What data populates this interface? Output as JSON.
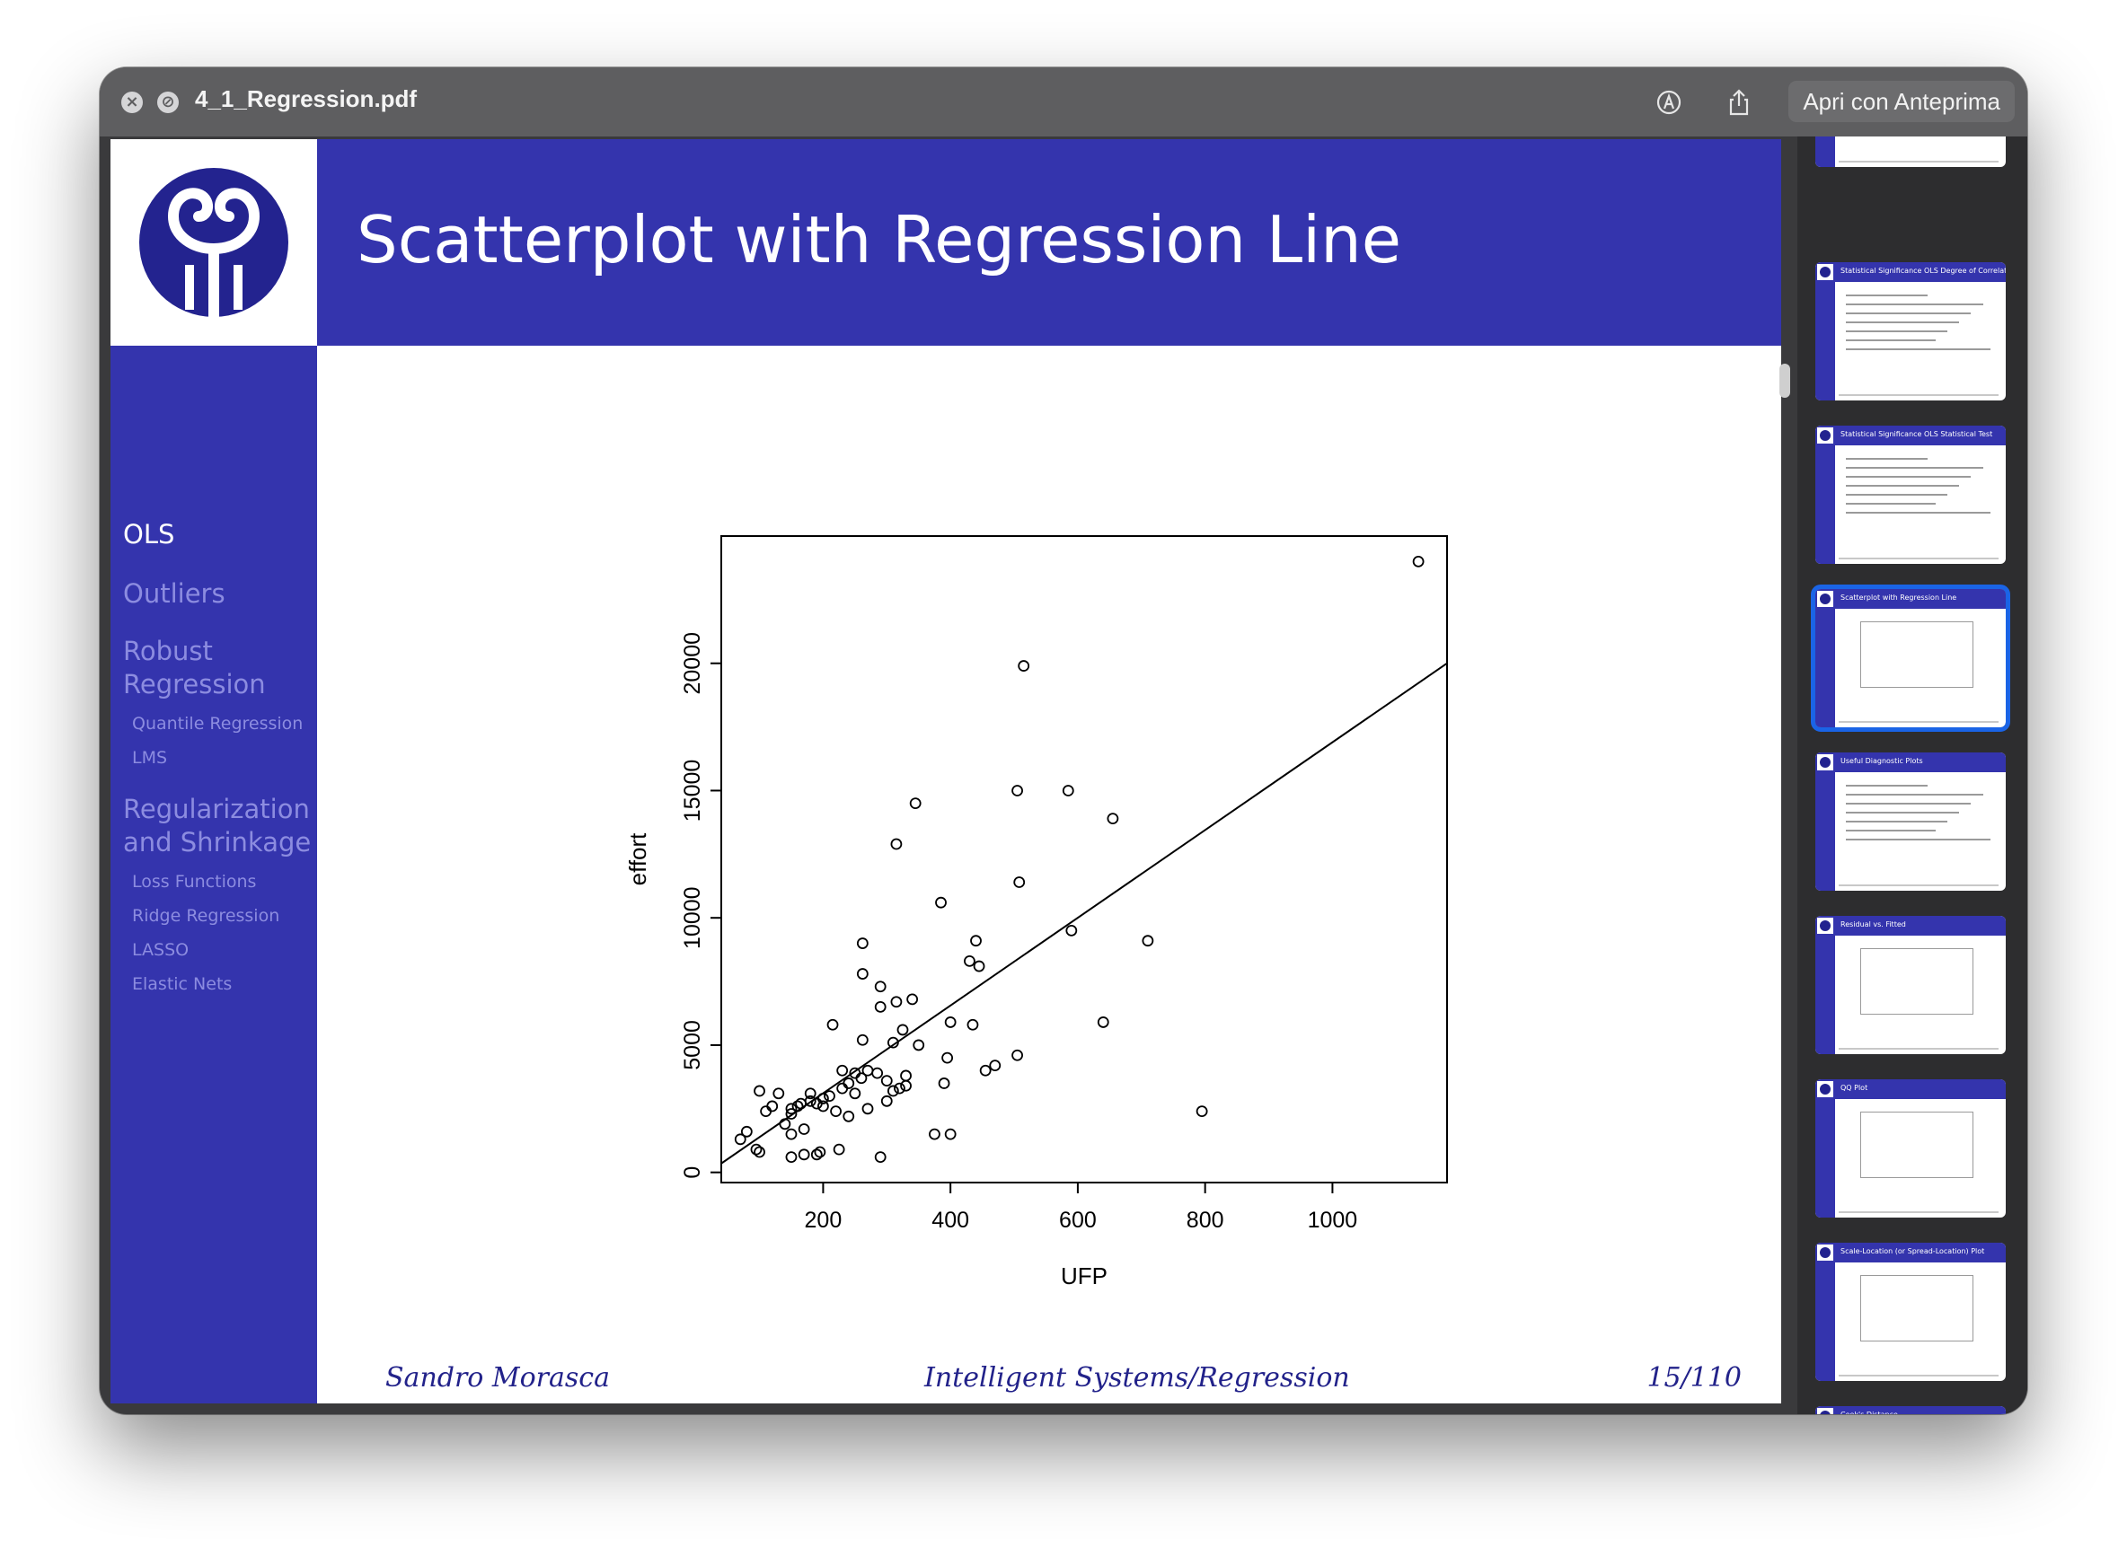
{
  "window": {
    "title": "4_1_Regression.pdf",
    "open_with_label": "Apri con Anteprima",
    "icons": [
      "close-icon",
      "minimize-icon",
      "markup-icon",
      "share-icon"
    ]
  },
  "slide": {
    "title": "Scatterplot with Regression Line",
    "nav": [
      {
        "label": "OLS",
        "active": true,
        "level": "section"
      },
      {
        "label": "Outliers",
        "active": false,
        "level": "section"
      },
      {
        "label": "Robust Regression",
        "active": false,
        "level": "section"
      },
      {
        "label": "Quantile Regression",
        "active": false,
        "level": "sub"
      },
      {
        "label": "LMS",
        "active": false,
        "level": "sub"
      },
      {
        "label": "Regularization and Shrinkage",
        "active": false,
        "level": "section"
      },
      {
        "label": "Loss Functions",
        "active": false,
        "level": "sub"
      },
      {
        "label": "Ridge Regression",
        "active": false,
        "level": "sub"
      },
      {
        "label": "LASSO",
        "active": false,
        "level": "sub"
      },
      {
        "label": "Elastic Nets",
        "active": false,
        "level": "sub"
      }
    ],
    "footer": {
      "author": "Sandro Morasca",
      "course": "Intelligent Systems/Regression",
      "page": "15/110"
    }
  },
  "chart_data": {
    "type": "scatter",
    "title": "",
    "xlabel": "UFP",
    "ylabel": "effort",
    "xlim": [
      40,
      1180
    ],
    "ylim": [
      -400,
      25000
    ],
    "xticks": [
      200,
      400,
      600,
      800,
      1000
    ],
    "yticks": [
      0,
      5000,
      10000,
      15000,
      20000
    ],
    "grid": false,
    "regression_line": {
      "x": [
        40,
        1180
      ],
      "y": [
        350,
        20000
      ]
    },
    "points": [
      [
        1135,
        24000
      ],
      [
        515,
        19900
      ],
      [
        345,
        14500
      ],
      [
        505,
        15000
      ],
      [
        585,
        15000
      ],
      [
        655,
        13900
      ],
      [
        315,
        12900
      ],
      [
        508,
        11400
      ],
      [
        385,
        10600
      ],
      [
        590,
        9500
      ],
      [
        710,
        9100
      ],
      [
        262,
        9000
      ],
      [
        440,
        9100
      ],
      [
        262,
        7800
      ],
      [
        290,
        7300
      ],
      [
        430,
        8300
      ],
      [
        445,
        8100
      ],
      [
        315,
        6700
      ],
      [
        340,
        6800
      ],
      [
        290,
        6500
      ],
      [
        325,
        5600
      ],
      [
        400,
        5900
      ],
      [
        640,
        5900
      ],
      [
        435,
        5800
      ],
      [
        215,
        5800
      ],
      [
        262,
        5200
      ],
      [
        310,
        5100
      ],
      [
        350,
        5000
      ],
      [
        395,
        4500
      ],
      [
        505,
        4600
      ],
      [
        470,
        4200
      ],
      [
        455,
        4000
      ],
      [
        390,
        3500
      ],
      [
        230,
        4000
      ],
      [
        250,
        3900
      ],
      [
        270,
        4000
      ],
      [
        285,
        3900
      ],
      [
        300,
        3600
      ],
      [
        240,
        3500
      ],
      [
        260,
        3700
      ],
      [
        320,
        3300
      ],
      [
        330,
        3800
      ],
      [
        230,
        3300
      ],
      [
        250,
        3100
      ],
      [
        200,
        2900
      ],
      [
        210,
        3000
      ],
      [
        180,
        2800
      ],
      [
        165,
        2700
      ],
      [
        150,
        2500
      ],
      [
        180,
        3100
      ],
      [
        100,
        3200
      ],
      [
        120,
        2600
      ],
      [
        110,
        2400
      ],
      [
        130,
        3100
      ],
      [
        150,
        2300
      ],
      [
        160,
        2600
      ],
      [
        190,
        2700
      ],
      [
        200,
        2600
      ],
      [
        220,
        2400
      ],
      [
        240,
        2200
      ],
      [
        270,
        2500
      ],
      [
        300,
        2800
      ],
      [
        310,
        3200
      ],
      [
        330,
        3400
      ],
      [
        140,
        1900
      ],
      [
        170,
        1700
      ],
      [
        150,
        1500
      ],
      [
        80,
        1600
      ],
      [
        70,
        1300
      ],
      [
        95,
        900
      ],
      [
        100,
        800
      ],
      [
        170,
        700
      ],
      [
        190,
        700
      ],
      [
        195,
        800
      ],
      [
        150,
        600
      ],
      [
        225,
        900
      ],
      [
        290,
        600
      ],
      [
        375,
        1500
      ],
      [
        400,
        1500
      ],
      [
        795,
        2400
      ]
    ]
  },
  "thumbnails": [
    {
      "title": "",
      "kind": "text",
      "selected": false
    },
    {
      "title": "Statistical Significance OLS Degree of Correlation",
      "kind": "text",
      "selected": false
    },
    {
      "title": "Statistical Significance OLS Statistical Test",
      "kind": "text",
      "selected": false
    },
    {
      "title": "Scatterplot with Regression Line",
      "kind": "plot",
      "selected": true
    },
    {
      "title": "Useful Diagnostic Plots",
      "kind": "text",
      "selected": false
    },
    {
      "title": "Residual vs. Fitted",
      "kind": "plot",
      "selected": false
    },
    {
      "title": "QQ Plot",
      "kind": "plot",
      "selected": false
    },
    {
      "title": "Scale-Location (or Spread-Location) Plot",
      "kind": "plot",
      "selected": false
    },
    {
      "title": "Cook's Distance",
      "kind": "plot",
      "selected": false
    }
  ]
}
